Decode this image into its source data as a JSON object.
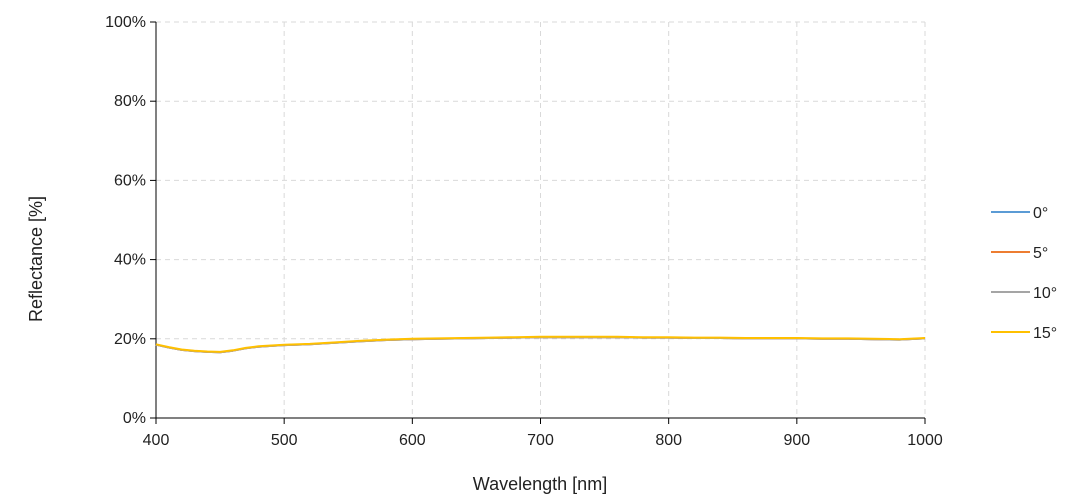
{
  "chart_data": {
    "type": "line",
    "title": "",
    "xlabel": "Wavelength [nm]",
    "ylabel": "Reflectance [%]",
    "xlim": [
      400,
      1000
    ],
    "ylim": [
      0,
      100
    ],
    "x_ticks": [
      400,
      500,
      600,
      700,
      800,
      900,
      1000
    ],
    "x_tick_labels": [
      "400",
      "500",
      "600",
      "700",
      "800",
      "900",
      "1000"
    ],
    "y_ticks": [
      0,
      20,
      40,
      60,
      80,
      100
    ],
    "y_tick_labels": [
      "0%",
      "20%",
      "40%",
      "60%",
      "80%",
      "100%"
    ],
    "grid": true,
    "grid_style": "dashed",
    "legend_position": "right",
    "x": [
      400,
      410,
      420,
      430,
      440,
      450,
      460,
      470,
      480,
      490,
      500,
      520,
      540,
      560,
      580,
      600,
      620,
      640,
      660,
      680,
      700,
      720,
      740,
      760,
      780,
      800,
      820,
      840,
      860,
      880,
      900,
      920,
      940,
      960,
      980,
      1000
    ],
    "series": [
      {
        "name": "0°",
        "color": "#5B9BD5",
        "values": [
          18.5,
          17.8,
          17.2,
          16.9,
          16.7,
          16.6,
          17.0,
          17.6,
          18.0,
          18.2,
          18.4,
          18.6,
          19.0,
          19.4,
          19.7,
          19.9,
          20.0,
          20.1,
          20.2,
          20.3,
          20.4,
          20.4,
          20.4,
          20.4,
          20.3,
          20.3,
          20.2,
          20.2,
          20.1,
          20.1,
          20.1,
          20.0,
          20.0,
          19.9,
          19.8,
          20.1
        ]
      },
      {
        "name": "5°",
        "color": "#ED7D31",
        "values": [
          18.5,
          17.8,
          17.2,
          16.9,
          16.7,
          16.6,
          17.0,
          17.6,
          18.0,
          18.2,
          18.4,
          18.6,
          19.0,
          19.4,
          19.7,
          19.9,
          20.0,
          20.1,
          20.2,
          20.3,
          20.4,
          20.4,
          20.4,
          20.4,
          20.3,
          20.3,
          20.2,
          20.2,
          20.1,
          20.1,
          20.1,
          20.0,
          20.0,
          19.9,
          19.8,
          20.1
        ]
      },
      {
        "name": "10°",
        "color": "#A5A5A5",
        "values": [
          18.5,
          17.8,
          17.2,
          16.9,
          16.7,
          16.6,
          17.0,
          17.6,
          18.0,
          18.2,
          18.4,
          18.6,
          19.0,
          19.4,
          19.7,
          19.9,
          20.0,
          20.1,
          20.2,
          20.3,
          20.4,
          20.4,
          20.4,
          20.4,
          20.3,
          20.3,
          20.2,
          20.2,
          20.1,
          20.1,
          20.1,
          20.0,
          20.0,
          19.9,
          19.8,
          20.1
        ]
      },
      {
        "name": "15°",
        "color": "#FFC000",
        "values": [
          18.6,
          17.9,
          17.3,
          17.0,
          16.8,
          16.7,
          17.1,
          17.7,
          18.1,
          18.3,
          18.5,
          18.7,
          19.1,
          19.5,
          19.8,
          20.0,
          20.1,
          20.2,
          20.3,
          20.4,
          20.5,
          20.5,
          20.5,
          20.5,
          20.4,
          20.4,
          20.3,
          20.3,
          20.2,
          20.2,
          20.2,
          20.1,
          20.1,
          20.0,
          19.9,
          20.2
        ]
      }
    ]
  }
}
